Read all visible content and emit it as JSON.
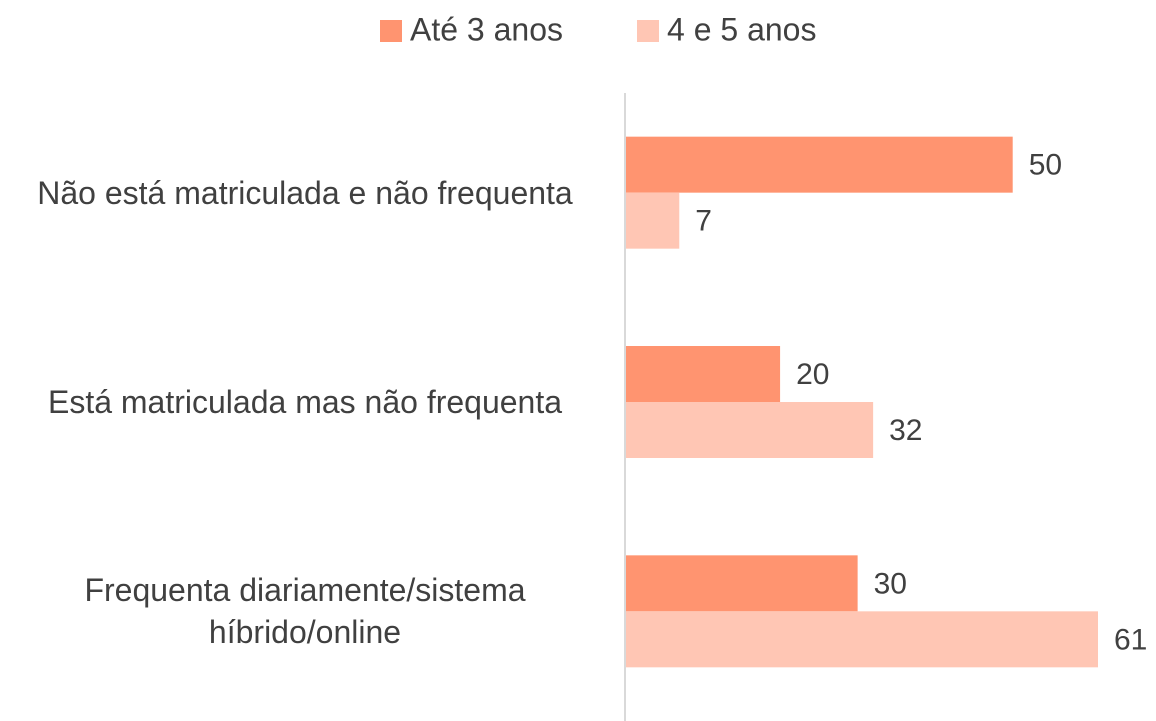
{
  "chart_data": {
    "type": "bar",
    "orientation": "horizontal",
    "categories": [
      "Não está matriculada e não frequenta",
      "Está matriculada mas não frequenta",
      "Frequenta diariamente/sistema híbrido/online"
    ],
    "series": [
      {
        "name": "Até 3 anos",
        "color": "#ff9470",
        "values": [
          50,
          20,
          30
        ]
      },
      {
        "name": "4 e 5 anos",
        "color": "#ffc6b4",
        "values": [
          7,
          32,
          61
        ]
      }
    ],
    "legend": "top"
  }
}
